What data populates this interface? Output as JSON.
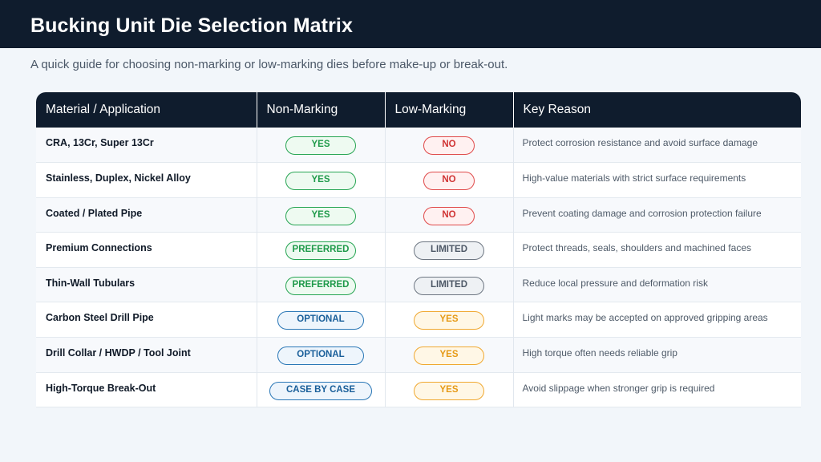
{
  "title": "Bucking Unit Die Selection Matrix",
  "subtitle": "A quick guide for choosing non-marking or low-marking dies before make-up or break-out.",
  "table": {
    "headers": [
      "Material / Application",
      "Non-Marking",
      "Low-Marking",
      "Key Reason"
    ],
    "rows": [
      {
        "material": "CRA, 13Cr, Super 13Cr",
        "non_marking": "YES",
        "low_marking": "NO",
        "reason": "Protect corrosion resistance and avoid surface damage"
      },
      {
        "material": "Stainless, Duplex, Nickel Alloy",
        "non_marking": "YES",
        "low_marking": "NO",
        "reason": "High-value materials with strict surface requirements"
      },
      {
        "material": "Coated / Plated Pipe",
        "non_marking": "YES",
        "low_marking": "NO",
        "reason": "Prevent coating damage and corrosion protection failure"
      },
      {
        "material": "Premium Connections",
        "non_marking": "PREFERRED",
        "low_marking": "LIMITED",
        "reason": "Protect threads, seals, shoulders and machined faces"
      },
      {
        "material": "Thin-Wall Tubulars",
        "non_marking": "PREFERRED",
        "low_marking": "LIMITED",
        "reason": "Reduce local pressure and deformation risk"
      },
      {
        "material": "Carbon Steel Drill Pipe",
        "non_marking": "OPTIONAL",
        "low_marking": "YES",
        "reason": "Light marks may be accepted on approved gripping areas"
      },
      {
        "material": "Drill Collar / HWDP / Tool Joint",
        "non_marking": "OPTIONAL",
        "low_marking": "YES",
        "reason": "High torque often needs reliable grip"
      },
      {
        "material": "High-Torque Break-Out",
        "non_marking": "CASE BY CASE",
        "low_marking": "YES",
        "reason": "Avoid slippage when stronger grip is required"
      }
    ]
  },
  "colors": {
    "header_bg": "#0f1c2d",
    "yes_green": "#27a553",
    "no_red": "#e04a4a",
    "limited_gray": "#6d7682",
    "optional_blue": "#2a77b6",
    "low_yes_amber": "#f0a830"
  }
}
